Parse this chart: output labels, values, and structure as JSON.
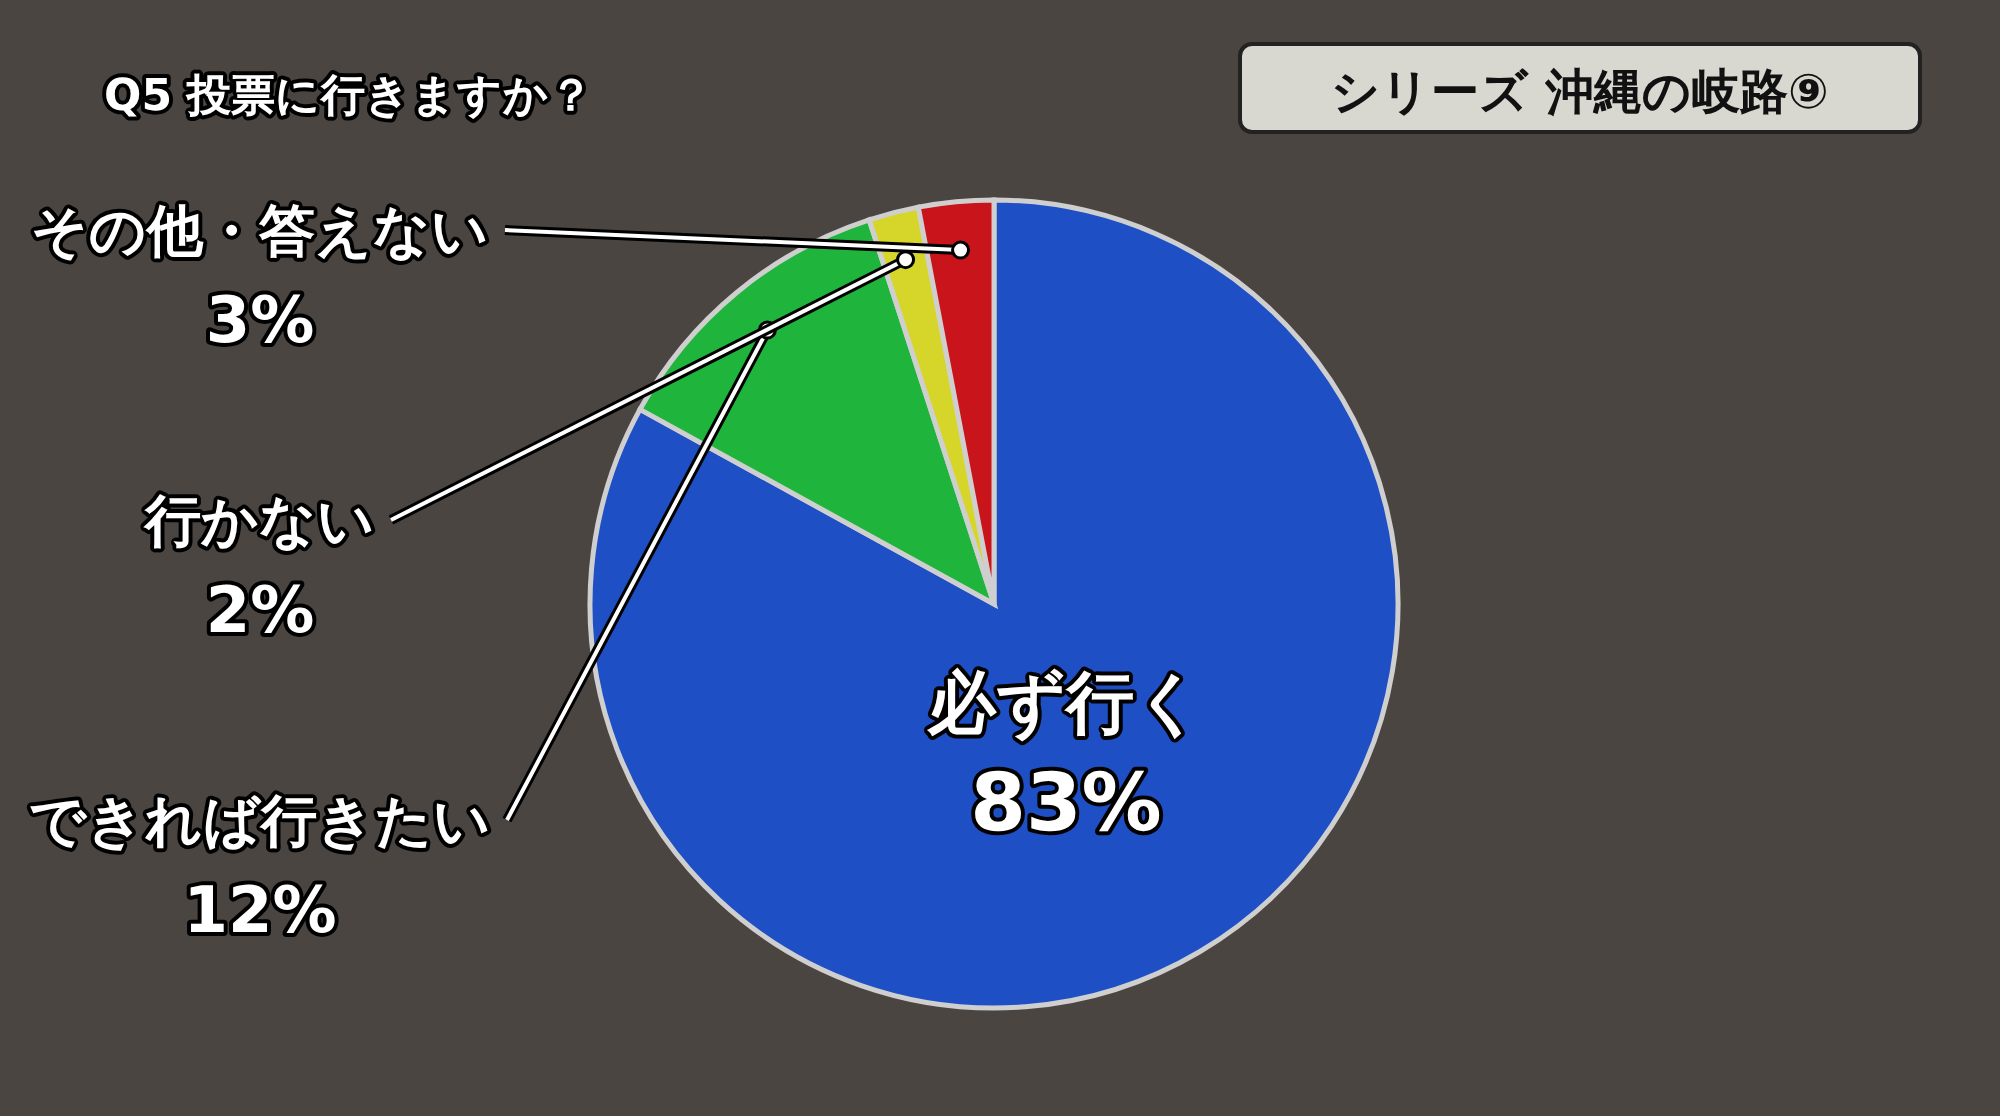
{
  "chart_data": {
    "type": "pie",
    "title": "Q5 投票に行きますか？",
    "subtitle": "シリーズ 沖縄の岐路⑨",
    "categories": [
      "必ず行く",
      "できれば行きたい",
      "行かない",
      "その他・答えない"
    ],
    "values": [
      83,
      12,
      2,
      3
    ],
    "value_labels": [
      "83%",
      "12%",
      "2%",
      "3%"
    ],
    "colors": [
      "#1f4fc4",
      "#1fb53c",
      "#d6d62a",
      "#c8141a"
    ]
  }
}
